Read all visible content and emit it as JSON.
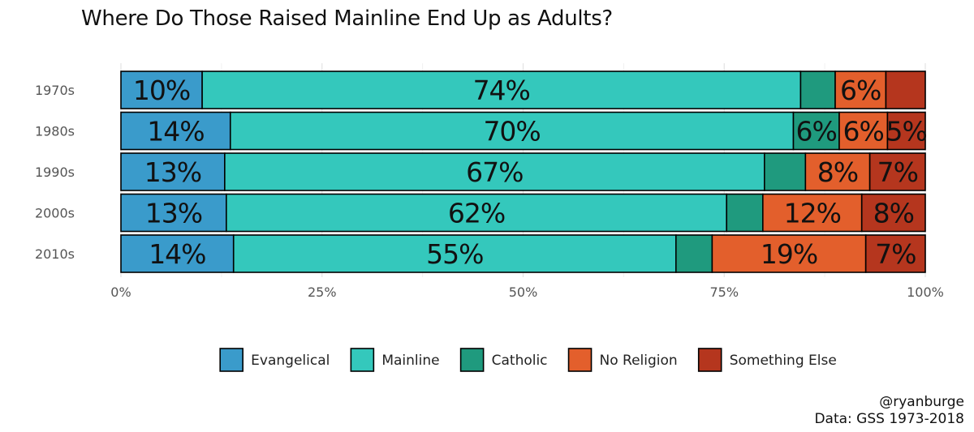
{
  "chart_data": {
    "type": "bar",
    "orientation": "horizontal",
    "stacked": true,
    "title": "Where Do Those Raised Mainline End Up as Adults?",
    "categories": [
      "1970s",
      "1980s",
      "1990s",
      "2000s",
      "2010s"
    ],
    "xlim": [
      0,
      100
    ],
    "x_ticks": [
      "0%",
      "25%",
      "50%",
      "75%",
      "100%"
    ],
    "legend_position": "bottom",
    "grid": true,
    "series": [
      {
        "name": "Evangelical",
        "color": "#3a9bcb",
        "values": [
          10.1,
          13.6,
          12.9,
          13.1,
          14.0
        ],
        "labels": [
          "10%",
          "14%",
          "13%",
          "13%",
          "14%"
        ]
      },
      {
        "name": "Mainline",
        "color": "#34c8bc",
        "values": [
          74.4,
          70.0,
          67.1,
          62.2,
          55.0
        ],
        "labels": [
          "74%",
          "70%",
          "67%",
          "62%",
          "55%"
        ]
      },
      {
        "name": "Catholic",
        "color": "#1f9a7e",
        "values": [
          4.3,
          5.7,
          5.1,
          4.5,
          4.5
        ],
        "labels": [
          "",
          "6%",
          "",
          "",
          ""
        ]
      },
      {
        "name": "No Religion",
        "color": "#e35f2c",
        "values": [
          6.3,
          6.0,
          8.0,
          12.3,
          19.1
        ],
        "labels": [
          "6%",
          "6%",
          "8%",
          "12%",
          "19%"
        ]
      },
      {
        "name": "Something Else",
        "color": "#b5361e",
        "values": [
          4.9,
          4.7,
          6.9,
          7.9,
          7.4
        ],
        "labels": [
          "",
          "5%",
          "7%",
          "8%",
          "7%"
        ]
      }
    ]
  },
  "captions": {
    "handle": "@ryanburge",
    "source": "Data: GSS 1973-2018"
  }
}
